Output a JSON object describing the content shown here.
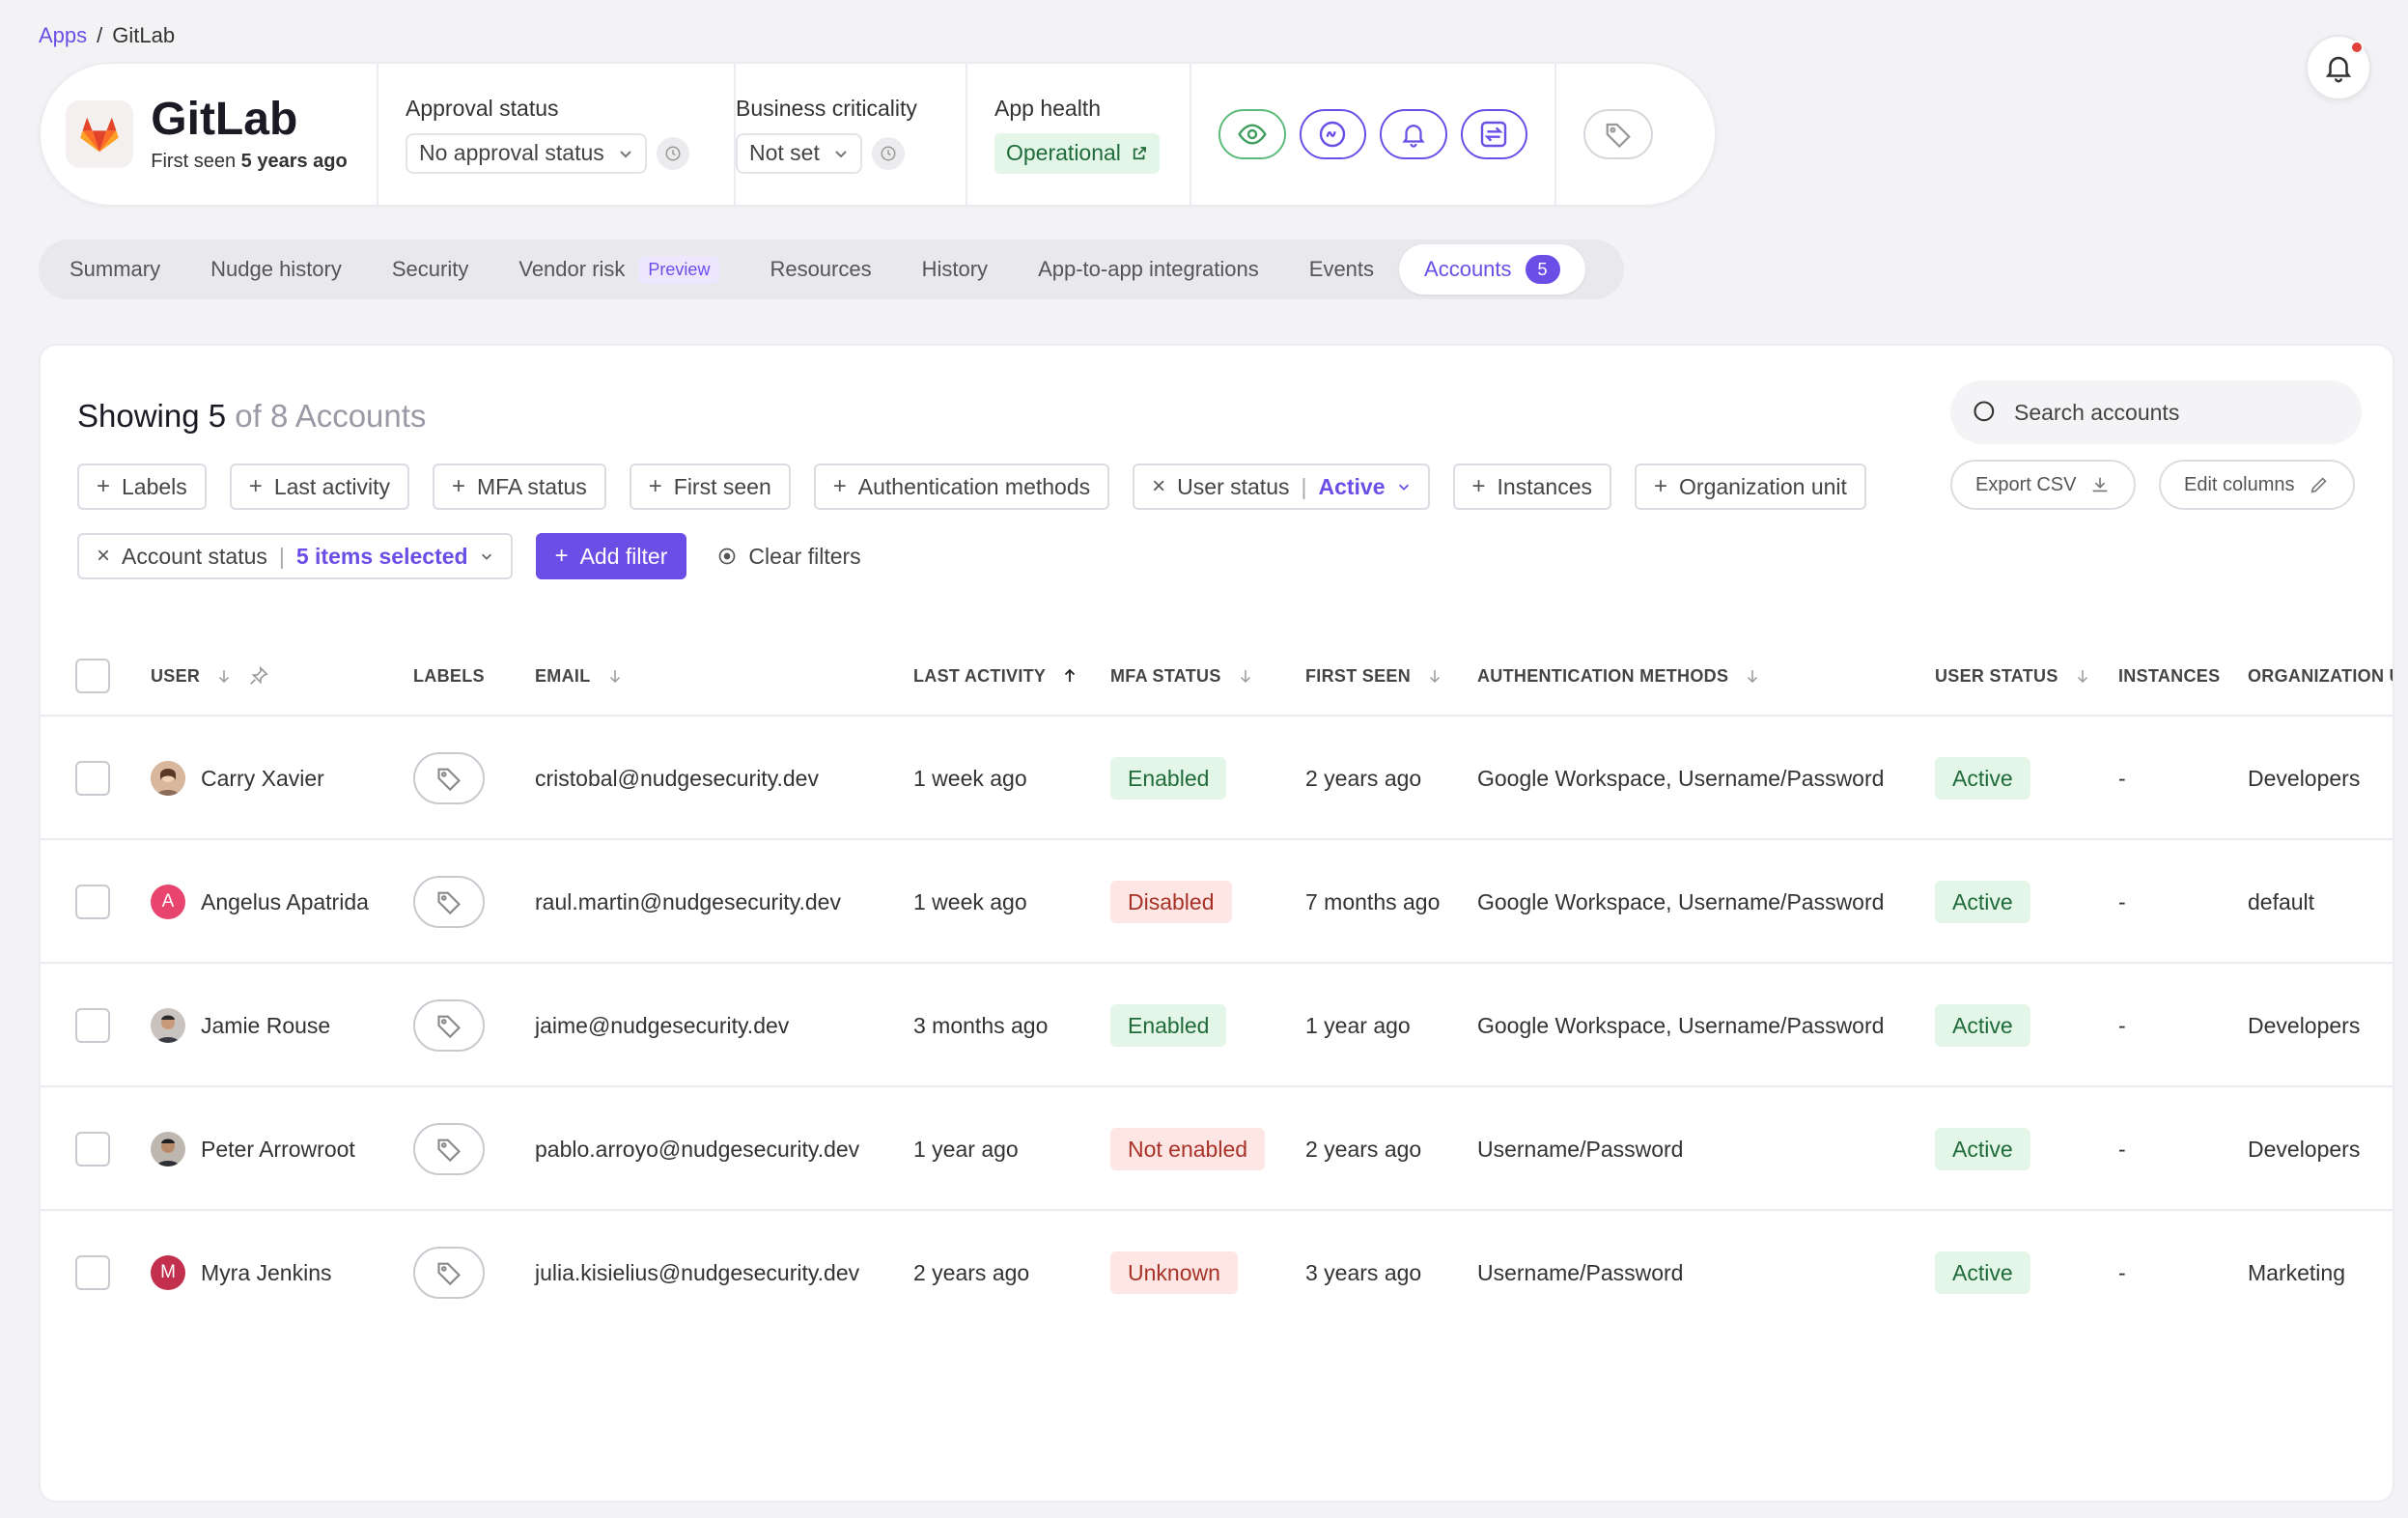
{
  "breadcrumb": {
    "parent": "Apps",
    "separator": "/",
    "current": "GitLab"
  },
  "app": {
    "name": "GitLab",
    "first_seen_prefix": "First seen",
    "first_seen_value": "5 years ago",
    "approval_label": "Approval status",
    "approval_value": "No approval status",
    "criticality_label": "Business criticality",
    "criticality_value": "Not set",
    "health_label": "App health",
    "health_value": "Operational"
  },
  "tabs": [
    {
      "label": "Summary"
    },
    {
      "label": "Nudge history"
    },
    {
      "label": "Security"
    },
    {
      "label": "Vendor risk",
      "badge": "Preview"
    },
    {
      "label": "Resources"
    },
    {
      "label": "History"
    },
    {
      "label": "App-to-app integrations"
    },
    {
      "label": "Events"
    },
    {
      "label": "Accounts",
      "count": "5"
    }
  ],
  "listing": {
    "showing_prefix": "Showing",
    "showing_count": "5",
    "showing_suffix": "of 8 Accounts",
    "search_placeholder": "Search accounts",
    "export_label": "Export CSV",
    "edit_columns_label": "Edit columns"
  },
  "filters": {
    "row1": [
      "Labels",
      "Last activity",
      "MFA status",
      "First seen",
      "Authentication methods"
    ],
    "user_status_label": "User status",
    "user_status_value": "Active",
    "row1_after": [
      "Instances",
      "Organization unit"
    ],
    "account_status_label": "Account status",
    "account_status_value": "5 items selected",
    "add_filter": "Add filter",
    "clear_filters": "Clear filters"
  },
  "columns": {
    "user": "USER",
    "labels": "LABELS",
    "email": "EMAIL",
    "last_activity": "LAST ACTIVITY",
    "mfa": "MFA STATUS",
    "first_seen": "FIRST SEEN",
    "auth": "AUTHENTICATION METHODS",
    "user_status": "USER STATUS",
    "instances": "INSTANCES",
    "org": "ORGANIZATION U"
  },
  "rows": [
    {
      "name": "Carry Xavier",
      "email": "cristobal@nudgesecurity.dev",
      "last_activity": "1 week ago",
      "mfa": "Enabled",
      "first_seen": "2 years ago",
      "auth": "Google Workspace, Username/Password",
      "user_status": "Active",
      "instances": "-",
      "org": "Developers"
    },
    {
      "name": "Angelus Apatrida",
      "initial": "A",
      "email": "raul.martin@nudgesecurity.dev",
      "last_activity": "1 week ago",
      "mfa": "Disabled",
      "first_seen": "7 months ago",
      "auth": "Google Workspace, Username/Password",
      "user_status": "Active",
      "instances": "-",
      "org": "default"
    },
    {
      "name": "Jamie Rouse",
      "email": "jaime@nudgesecurity.dev",
      "last_activity": "3 months ago",
      "mfa": "Enabled",
      "first_seen": "1 year ago",
      "auth": "Google Workspace, Username/Password",
      "user_status": "Active",
      "instances": "-",
      "org": "Developers"
    },
    {
      "name": "Peter Arrowroot",
      "email": "pablo.arroyo@nudgesecurity.dev",
      "last_activity": "1 year ago",
      "mfa": "Not enabled",
      "first_seen": "2 years ago",
      "auth": "Username/Password",
      "user_status": "Active",
      "instances": "-",
      "org": "Developers"
    },
    {
      "name": "Myra Jenkins",
      "initial": "M",
      "email": "julia.kisielius@nudgesecurity.dev",
      "last_activity": "2 years ago",
      "mfa": "Unknown",
      "first_seen": "3 years ago",
      "auth": "Username/Password",
      "user_status": "Active",
      "instances": "-",
      "org": "Marketing"
    }
  ],
  "colors": {
    "accent": "#6b4ee6",
    "success_bg": "#e3f6e8",
    "danger_bg": "#fde6e4"
  }
}
